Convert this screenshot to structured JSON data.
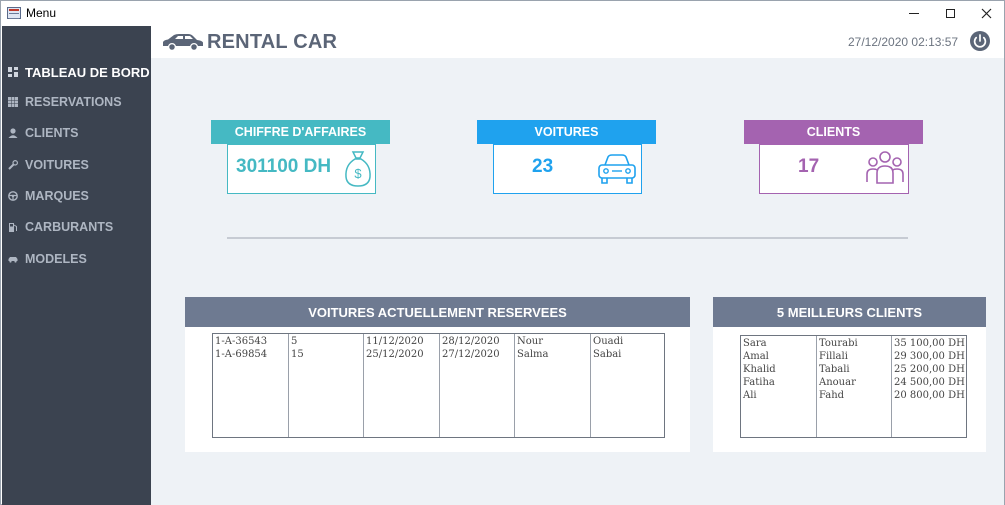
{
  "window": {
    "title": "Menu",
    "minimize": "─",
    "maximize": "☐",
    "close": "✕"
  },
  "sidebar": {
    "items": [
      {
        "label": "TABLEAU DE BORD",
        "icon": "dashboard-icon",
        "active": true
      },
      {
        "label": "RESERVATIONS",
        "icon": "grid-icon",
        "active": false
      },
      {
        "label": "CLIENTS",
        "icon": "user-icon",
        "active": false
      },
      {
        "label": "VOITURES",
        "icon": "wrench-icon",
        "active": false
      },
      {
        "label": "MARQUES",
        "icon": "steering-wheel-icon",
        "active": false
      },
      {
        "label": "CARBURANTS",
        "icon": "fuel-pump-icon",
        "active": false
      },
      {
        "label": "MODELES",
        "icon": "car-icon",
        "active": false
      }
    ]
  },
  "header": {
    "logo": "RENTAL CAR",
    "datetime": "27/12/2020 02:13:57",
    "power_icon": "power-icon"
  },
  "stats": {
    "revenue": {
      "label": "CHIFFRE D'AFFAIRES",
      "value": "301100 DH",
      "icon": "money-bag-icon",
      "color": "#3fb8bf"
    },
    "cars": {
      "label": "VOITURES",
      "value": "23",
      "icon": "car-front-icon",
      "color": "#26a3e8"
    },
    "clients": {
      "label": "CLIENTS",
      "value": "17",
      "icon": "users-icon",
      "color": "#a462b0"
    }
  },
  "reserved": {
    "title": "VOITURES ACTUELLEMENT RESERVEES",
    "rows": [
      [
        "1-A-36543",
        "5",
        "11/12/2020",
        "28/12/2020",
        "Nour",
        "Ouadi"
      ],
      [
        "1-A-69854",
        "15",
        "25/12/2020",
        "27/12/2020",
        "Salma",
        "Sabai"
      ]
    ]
  },
  "top_clients": {
    "title": "5 MEILLEURS CLIENTS",
    "rows": [
      [
        "Sara",
        "Tourabi",
        "35 100,00 DH"
      ],
      [
        "Amal",
        "Fillali",
        "29 300,00 DH"
      ],
      [
        "Khalid",
        "Tabali",
        "25 200,00 DH"
      ],
      [
        "Fatiha",
        "Anouar",
        "24 500,00 DH"
      ],
      [
        "Ali",
        "Fahd",
        "20 800,00 DH"
      ]
    ]
  },
  "colors": {
    "sidebar": "#3b4350",
    "panel_header": "#6e7a91",
    "background": "#eef2f6"
  }
}
